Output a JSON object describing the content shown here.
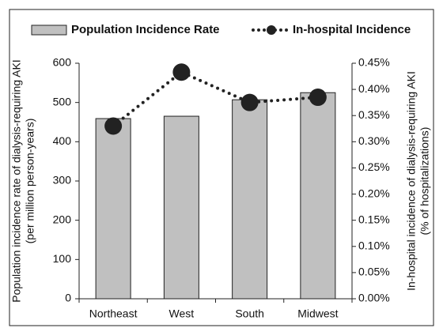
{
  "chart_data": {
    "type": "bar",
    "categories": [
      "Northeast",
      "West",
      "South",
      "Midwest"
    ],
    "series": [
      {
        "name": "Population Incidence Rate",
        "type": "bar",
        "color": "#c0c0c0",
        "values": [
          459,
          465,
          507,
          525
        ]
      },
      {
        "name": "In-hospital Incidence",
        "type": "line",
        "axis": "y2",
        "color": "#222222",
        "values": [
          0.33,
          0.433,
          0.375,
          0.385
        ]
      }
    ],
    "ylim": [
      0,
      600
    ],
    "yticks": [
      0,
      100,
      200,
      300,
      400,
      500,
      600
    ],
    "y2lim": [
      0,
      0.45
    ],
    "y2ticks": [
      {
        "value": 0,
        "label": "0.00%"
      },
      {
        "value": 0.05,
        "label": "0.05%"
      },
      {
        "value": 0.1,
        "label": "0.10%"
      },
      {
        "value": 0.15,
        "label": "0.15%"
      },
      {
        "value": 0.2,
        "label": "0.20%"
      },
      {
        "value": 0.25,
        "label": "0.25%"
      },
      {
        "value": 0.3,
        "label": "0.30%"
      },
      {
        "value": 0.35,
        "label": "0.35%"
      },
      {
        "value": 0.4,
        "label": "0.40%"
      },
      {
        "value": 0.45,
        "label": "0.45%"
      }
    ],
    "ylabel": [
      "Population incidence rate of dialysis-requiring AKI",
      "(per million person-years)"
    ],
    "y2label": [
      "In-hospital incidence of dialysis-requiring AKI",
      "(% of hospitalizations)"
    ],
    "legend": "top"
  }
}
